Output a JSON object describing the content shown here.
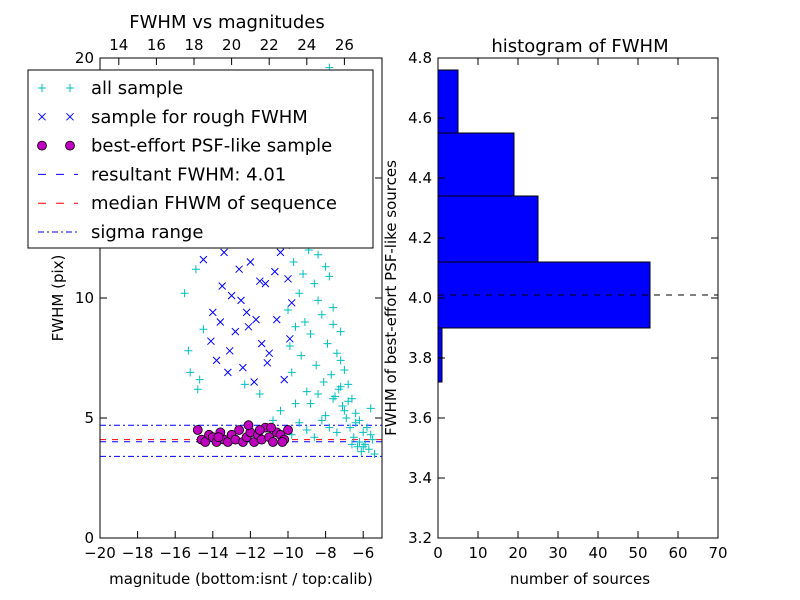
{
  "colors": {
    "all_sample": "#00bfbf",
    "rough_sample": "#0000ff",
    "psf_sample": "#bf00bf",
    "resultant_line": "#0000ff",
    "median_line": "#ff0000",
    "sigma_line": "#0000ff",
    "hist_bar": "#0000ff"
  },
  "chart_data": [
    {
      "type": "scatter",
      "title": "FWHM vs magnitudes",
      "xlabel": "magnitude (bottom:isnt / top:calib)",
      "ylabel": "FWHM (pix)",
      "xlim": [
        -20,
        -5
      ],
      "ylim": [
        0,
        20
      ],
      "x_ticks": [
        -20,
        -18,
        -16,
        -14,
        -12,
        -10,
        -8,
        -6
      ],
      "x_tick_labels": [
        "−20",
        "−18",
        "−16",
        "−14",
        "−12",
        "−10",
        "−8",
        "−6"
      ],
      "y_ticks": [
        0,
        5,
        10,
        15,
        20
      ],
      "y_tick_labels": [
        "0",
        "5",
        "10",
        "15",
        "20"
      ],
      "top_axis": {
        "ticks": [
          14,
          16,
          18,
          20,
          22,
          24,
          26
        ],
        "tick_labels": [
          "14",
          "16",
          "18",
          "20",
          "22",
          "24",
          "26"
        ],
        "bottom_equivalent": [
          -19,
          -17,
          -15,
          -13,
          -11,
          -9,
          -7
        ]
      },
      "legend": {
        "placement": "top-left",
        "entries": [
          {
            "label": "all sample",
            "marker": "plus",
            "color": "#00bfbf"
          },
          {
            "label": "sample for rough FWHM",
            "marker": "x",
            "color": "#0000ff"
          },
          {
            "label": "best-effort PSF-like sample",
            "marker": "circle",
            "color": "#bf00bf"
          },
          {
            "label": "resultant FWHM: 4.01",
            "marker": "dashed",
            "color": "#0000ff"
          },
          {
            "label": "median FHWM of sequence",
            "marker": "dashed",
            "color": "#ff0000"
          },
          {
            "label": "sigma range",
            "marker": "dashdot",
            "color": "#0000ff"
          }
        ]
      },
      "lines": {
        "resultant_fwhm": 4.01,
        "median_fwhm": 4.1,
        "sigma_range": [
          3.4,
          4.7
        ]
      },
      "series": [
        {
          "name": "all sample",
          "points": [
            [
              -15.5,
              10.2
            ],
            [
              -15.3,
              7.8
            ],
            [
              -15.2,
              6.9
            ],
            [
              -14.8,
              6.2
            ],
            [
              -14.7,
              6.6
            ],
            [
              -14.9,
              11.2
            ],
            [
              -14.5,
              8.7
            ],
            [
              -12.3,
              6.4
            ],
            [
              -11.5,
              6.0
            ],
            [
              -10.8,
              4.9
            ],
            [
              -10.4,
              5.3
            ],
            [
              -10.0,
              9.5
            ],
            [
              -9.9,
              8.0
            ],
            [
              -9.8,
              6.9
            ],
            [
              -9.7,
              11.5
            ],
            [
              -9.6,
              5.6
            ],
            [
              -9.5,
              14.6
            ],
            [
              -9.4,
              10.2
            ],
            [
              -9.3,
              7.6
            ],
            [
              -9.2,
              13.1
            ],
            [
              -9.1,
              9.0
            ],
            [
              -9.0,
              6.1
            ],
            [
              -8.9,
              12.0
            ],
            [
              -8.8,
              8.5
            ],
            [
              -8.7,
              15.4
            ],
            [
              -8.6,
              10.6
            ],
            [
              -8.5,
              7.2
            ],
            [
              -8.4,
              11.8
            ],
            [
              -8.3,
              16.4
            ],
            [
              -8.2,
              9.3
            ],
            [
              -8.1,
              6.5
            ],
            [
              -8.0,
              13.8
            ],
            [
              -7.9,
              8.1
            ],
            [
              -7.8,
              10.9
            ],
            [
              -7.7,
              6.8
            ],
            [
              -7.6,
              9.6
            ],
            [
              -7.5,
              5.9
            ],
            [
              -7.4,
              7.7
            ],
            [
              -7.3,
              6.2
            ],
            [
              -7.2,
              8.6
            ],
            [
              -7.1,
              5.5
            ],
            [
              -7.0,
              7.0
            ],
            [
              -6.9,
              5.0
            ],
            [
              -6.8,
              6.4
            ],
            [
              -6.7,
              4.6
            ],
            [
              -6.6,
              5.8
            ],
            [
              -6.5,
              4.2
            ],
            [
              -6.4,
              5.2
            ],
            [
              -6.3,
              3.8
            ],
            [
              -6.2,
              4.9
            ],
            [
              -6.1,
              3.6
            ],
            [
              -6.0,
              4.4
            ],
            [
              -5.9,
              3.9
            ],
            [
              -5.8,
              4.6
            ],
            [
              -5.7,
              3.7
            ],
            [
              -5.6,
              5.4
            ],
            [
              -5.5,
              4.1
            ],
            [
              -5.4,
              3.5
            ],
            [
              -9.8,
              4.3
            ],
            [
              -9.4,
              4.8
            ],
            [
              -9.0,
              4.5
            ],
            [
              -8.6,
              4.2
            ],
            [
              -8.2,
              4.9
            ],
            [
              -7.8,
              4.6
            ],
            [
              -7.4,
              4.4
            ],
            [
              -7.0,
              5.3
            ],
            [
              -6.6,
              3.9
            ],
            [
              -6.2,
              4.0
            ],
            [
              -8.8,
              5.6
            ],
            [
              -8.4,
              6.0
            ],
            [
              -8.0,
              5.1
            ],
            [
              -7.6,
              5.8
            ],
            [
              -7.2,
              6.3
            ],
            [
              -6.8,
              5.7
            ],
            [
              -6.4,
              4.8
            ],
            [
              -6.0,
              3.8
            ],
            [
              -5.6,
              4.3
            ],
            [
              -9.6,
              8.8
            ],
            [
              -9.2,
              11.0
            ],
            [
              -8.8,
              12.7
            ],
            [
              -8.4,
              9.9
            ],
            [
              -8.0,
              11.3
            ],
            [
              -7.6,
              8.9
            ],
            [
              -7.2,
              7.4
            ],
            [
              -8.6,
              14.2
            ],
            [
              -8.2,
              12.4
            ],
            [
              -9.0,
              15.8
            ],
            [
              -7.8,
              19.6
            ],
            [
              -8.9,
              17.2
            ],
            [
              -7.5,
              18.5
            ],
            [
              -8.3,
              14.9
            ],
            [
              -7.7,
              13.2
            ]
          ]
        },
        {
          "name": "sample for rough FWHM",
          "points": [
            [
              -14.5,
              11.6
            ],
            [
              -14.1,
              8.2
            ],
            [
              -13.8,
              7.4
            ],
            [
              -13.6,
              9.0
            ],
            [
              -13.4,
              11.9
            ],
            [
              -13.2,
              6.9
            ],
            [
              -13.0,
              10.1
            ],
            [
              -12.8,
              8.6
            ],
            [
              -12.6,
              11.2
            ],
            [
              -12.4,
              7.1
            ],
            [
              -12.2,
              9.4
            ],
            [
              -12.0,
              11.5
            ],
            [
              -11.8,
              6.5
            ],
            [
              -11.6,
              12.3
            ],
            [
              -11.4,
              8.1
            ],
            [
              -11.2,
              10.6
            ],
            [
              -11.0,
              7.7
            ],
            [
              -10.8,
              13.3
            ],
            [
              -10.6,
              9.1
            ],
            [
              -10.4,
              11.9
            ],
            [
              -10.2,
              6.6
            ],
            [
              -10.0,
              10.8
            ],
            [
              -9.9,
              8.3
            ],
            [
              -10.5,
              12.6
            ],
            [
              -11.5,
              10.7
            ],
            [
              -12.5,
              9.9
            ],
            [
              -13.5,
              10.5
            ],
            [
              -10.3,
              13.8
            ],
            [
              -10.1,
              12.2
            ],
            [
              -9.8,
              9.8
            ],
            [
              -11.1,
              7.3
            ],
            [
              -12.1,
              8.8
            ],
            [
              -13.1,
              7.8
            ],
            [
              -14.0,
              9.4
            ],
            [
              -10.7,
              11.1
            ],
            [
              -11.7,
              9.1
            ]
          ]
        },
        {
          "name": "best-effort PSF-like sample",
          "points": [
            [
              -14.8,
              4.5
            ],
            [
              -14.6,
              4.1
            ],
            [
              -14.4,
              4.0
            ],
            [
              -14.2,
              4.3
            ],
            [
              -14.0,
              4.2
            ],
            [
              -13.8,
              4.0
            ],
            [
              -13.6,
              4.4
            ],
            [
              -13.4,
              4.1
            ],
            [
              -13.2,
              4.0
            ],
            [
              -13.0,
              4.3
            ],
            [
              -12.8,
              4.1
            ],
            [
              -12.6,
              4.5
            ],
            [
              -12.4,
              4.0
            ],
            [
              -12.2,
              4.2
            ],
            [
              -12.0,
              4.4
            ],
            [
              -11.8,
              4.0
            ],
            [
              -11.6,
              4.3
            ],
            [
              -11.4,
              4.1
            ],
            [
              -11.2,
              4.6
            ],
            [
              -11.0,
              4.2
            ],
            [
              -10.8,
              4.0
            ],
            [
              -10.6,
              4.4
            ],
            [
              -10.4,
              4.3
            ],
            [
              -10.2,
              4.1
            ],
            [
              -10.0,
              4.5
            ],
            [
              -12.1,
              4.7
            ],
            [
              -10.9,
              4.6
            ],
            [
              -13.7,
              4.2
            ],
            [
              -11.5,
              4.5
            ],
            [
              -10.3,
              4.0
            ]
          ]
        }
      ]
    },
    {
      "type": "bar",
      "orientation": "horizontal",
      "title": "histogram of FWHM",
      "xlabel": "number of sources",
      "ylabel": "FWHM of best-effort PSF-like sources",
      "xlim": [
        0,
        70
      ],
      "ylim": [
        3.2,
        4.8
      ],
      "x_ticks": [
        0,
        10,
        20,
        30,
        40,
        50,
        60,
        70
      ],
      "x_tick_labels": [
        "0",
        "10",
        "20",
        "30",
        "40",
        "50",
        "60",
        "70"
      ],
      "y_ticks": [
        3.2,
        3.4,
        3.6,
        3.8,
        4.0,
        4.2,
        4.4,
        4.6,
        4.8
      ],
      "y_tick_labels": [
        "3.2",
        "3.4",
        "3.6",
        "3.8",
        "4.0",
        "4.2",
        "4.4",
        "4.6",
        "4.8"
      ],
      "bins": [
        {
          "low": 3.5,
          "high": 3.72,
          "count": 0
        },
        {
          "low": 3.72,
          "high": 3.9,
          "count": 1
        },
        {
          "low": 3.9,
          "high": 4.12,
          "count": 53
        },
        {
          "low": 4.12,
          "high": 4.34,
          "count": 25
        },
        {
          "low": 4.34,
          "high": 4.55,
          "count": 19
        },
        {
          "low": 4.55,
          "high": 4.76,
          "count": 5
        }
      ],
      "reference_line": 4.01
    }
  ]
}
